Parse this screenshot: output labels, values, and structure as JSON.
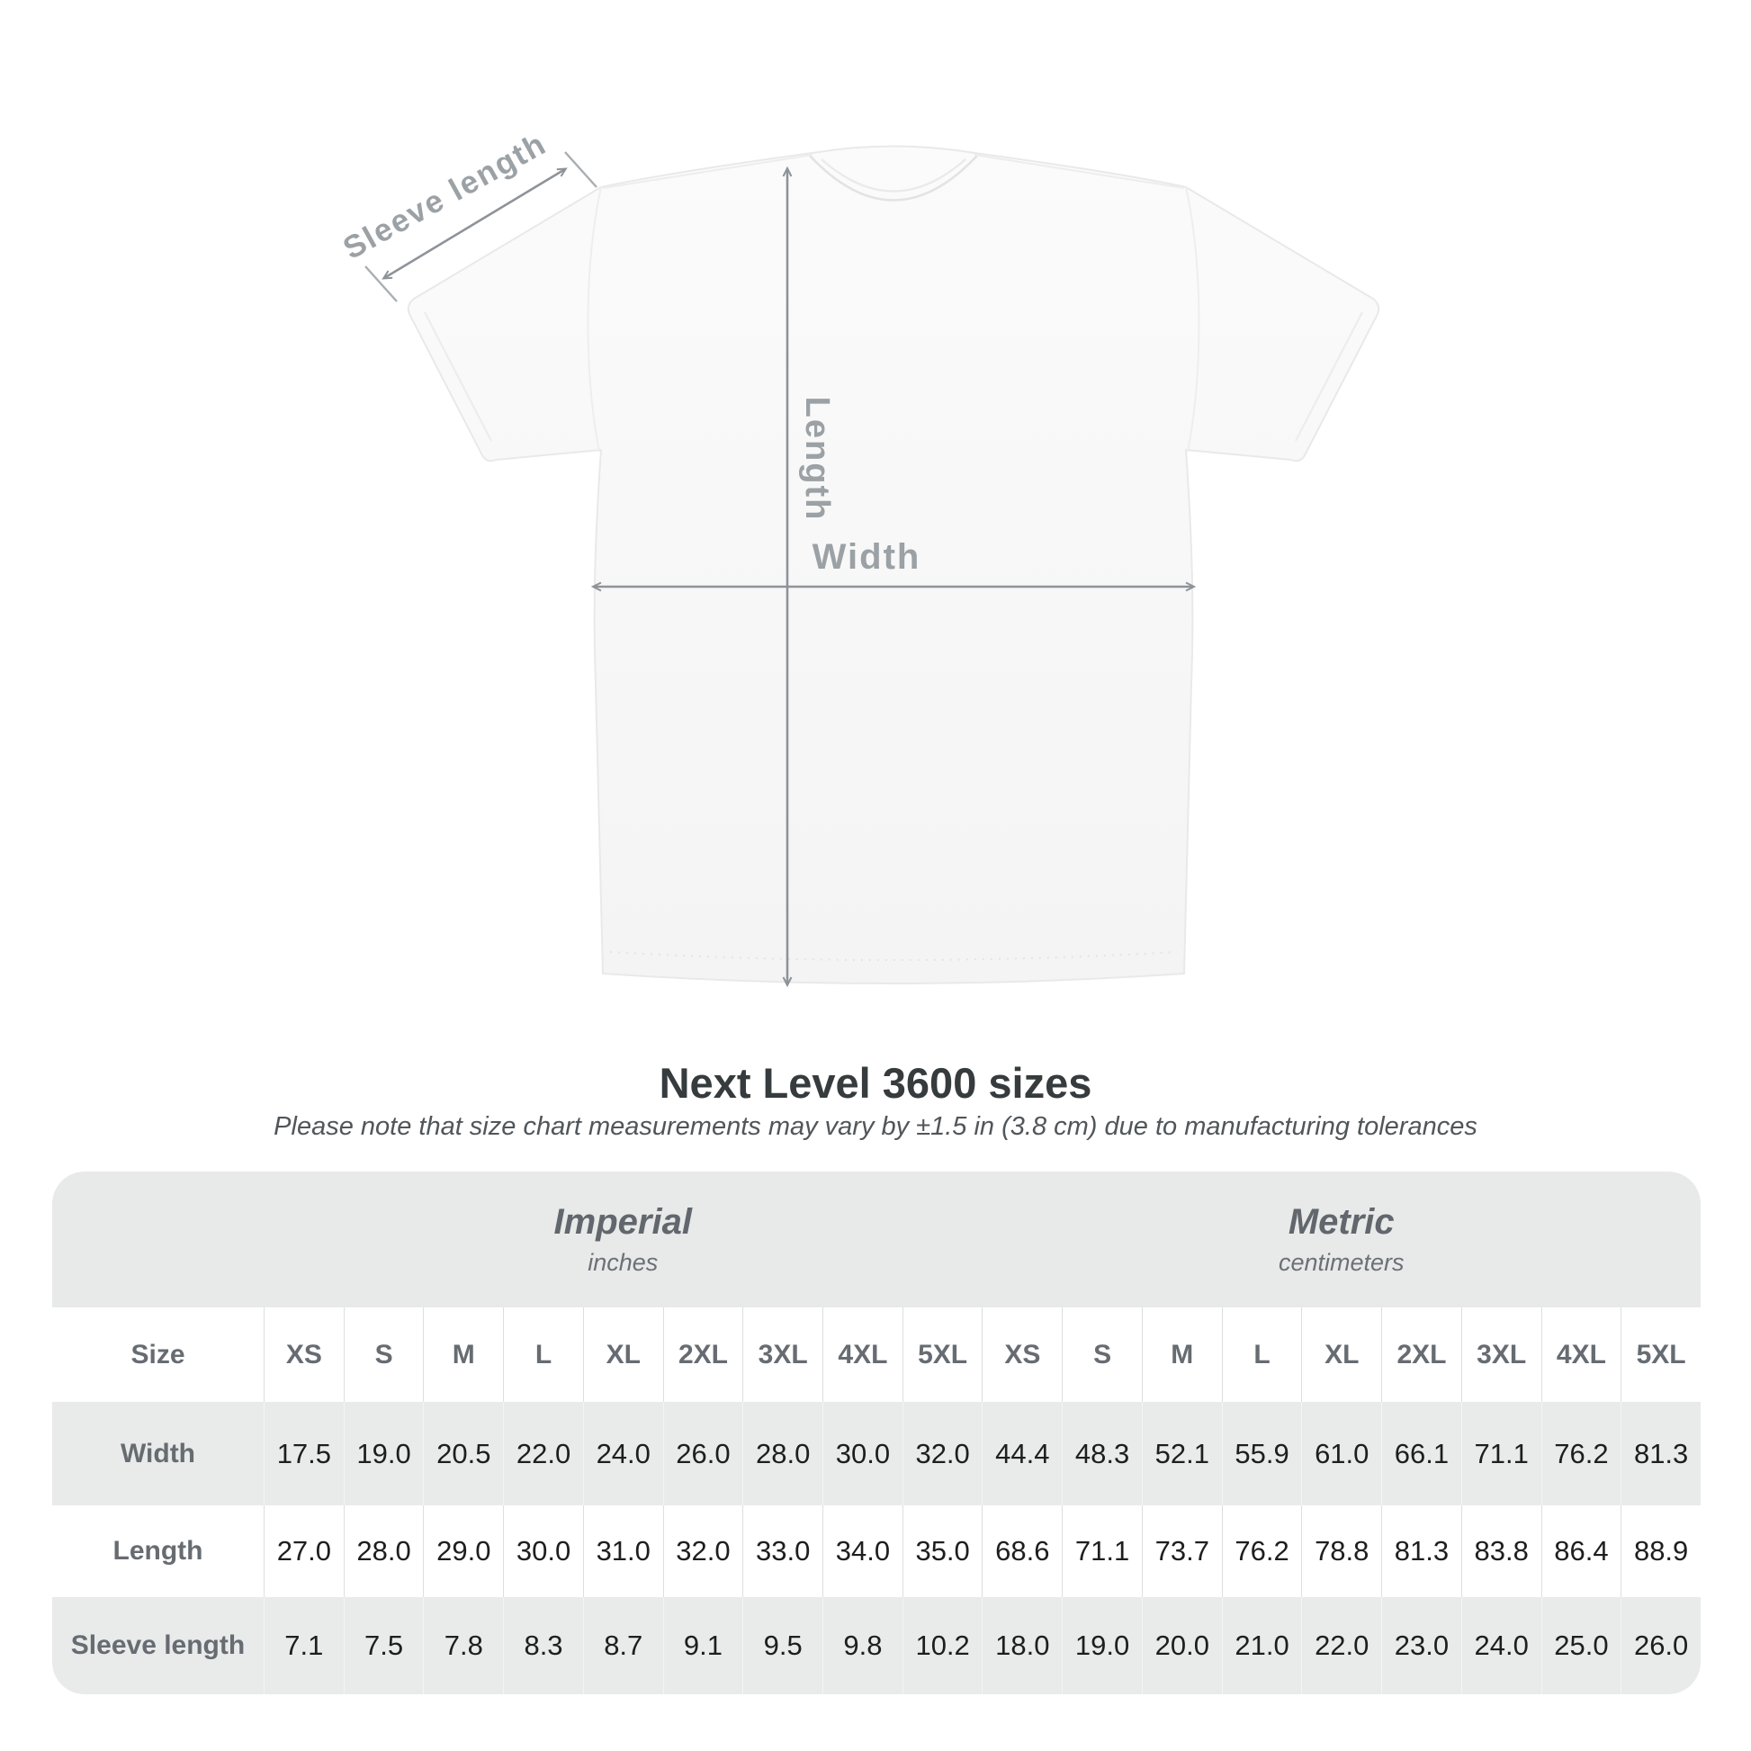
{
  "shirt_diagram": {
    "labels": {
      "sleeve_length": "Sleeve length",
      "length": "Length",
      "width": "Width"
    },
    "label_color": "#9ba1a5",
    "arrow_color": "#8e9398",
    "shirt_fill": "#f8f8f8"
  },
  "heading": {
    "title": "Next Level 3600 sizes",
    "subtitle": "Please note that size chart measurements may vary by ±1.5 in (3.8 cm) due to manufacturing tolerances"
  },
  "table": {
    "unit_groups": [
      {
        "name": "Imperial",
        "unit": "inches"
      },
      {
        "name": "Metric",
        "unit": "centimeters"
      }
    ],
    "size_label": "Size",
    "sizes": [
      "XS",
      "S",
      "M",
      "L",
      "XL",
      "2XL",
      "3XL",
      "4XL",
      "5XL"
    ],
    "rows": [
      {
        "label": "Width",
        "imperial": [
          "17.5",
          "19.0",
          "20.5",
          "22.0",
          "24.0",
          "26.0",
          "28.0",
          "30.0",
          "32.0"
        ],
        "metric": [
          "44.4",
          "48.3",
          "52.1",
          "55.9",
          "61.0",
          "66.1",
          "71.1",
          "76.2",
          "81.3"
        ]
      },
      {
        "label": "Length",
        "imperial": [
          "27.0",
          "28.0",
          "29.0",
          "30.0",
          "31.0",
          "32.0",
          "33.0",
          "34.0",
          "35.0"
        ],
        "metric": [
          "68.6",
          "71.1",
          "73.7",
          "76.2",
          "78.8",
          "81.3",
          "83.8",
          "86.4",
          "88.9"
        ]
      },
      {
        "label": "Sleeve length",
        "imperial": [
          "7.1",
          "7.5",
          "7.8",
          "8.3",
          "8.7",
          "9.1",
          "9.5",
          "9.8",
          "10.2"
        ],
        "metric": [
          "18.0",
          "19.0",
          "20.0",
          "21.0",
          "22.0",
          "23.0",
          "24.0",
          "25.0",
          "26.0"
        ]
      }
    ]
  },
  "chart_data": {
    "type": "table",
    "title": "Next Level 3600 sizes",
    "note": "Size chart measurements may vary by ±1.5 in (3.8 cm) due to manufacturing tolerances",
    "columns_sizes": [
      "XS",
      "S",
      "M",
      "L",
      "XL",
      "2XL",
      "3XL",
      "4XL",
      "5XL"
    ],
    "rows": [
      {
        "measure": "Width",
        "imperial_in": [
          17.5,
          19.0,
          20.5,
          22.0,
          24.0,
          26.0,
          28.0,
          30.0,
          32.0
        ],
        "metric_cm": [
          44.4,
          48.3,
          52.1,
          55.9,
          61.0,
          66.1,
          71.1,
          76.2,
          81.3
        ]
      },
      {
        "measure": "Length",
        "imperial_in": [
          27.0,
          28.0,
          29.0,
          30.0,
          31.0,
          32.0,
          33.0,
          34.0,
          35.0
        ],
        "metric_cm": [
          68.6,
          71.1,
          73.7,
          76.2,
          78.8,
          81.3,
          83.8,
          86.4,
          88.9
        ]
      },
      {
        "measure": "Sleeve length",
        "imperial_in": [
          7.1,
          7.5,
          7.8,
          8.3,
          8.7,
          9.1,
          9.5,
          9.8,
          10.2
        ],
        "metric_cm": [
          18.0,
          19.0,
          20.0,
          21.0,
          22.0,
          23.0,
          24.0,
          25.0,
          26.0
        ]
      }
    ]
  }
}
